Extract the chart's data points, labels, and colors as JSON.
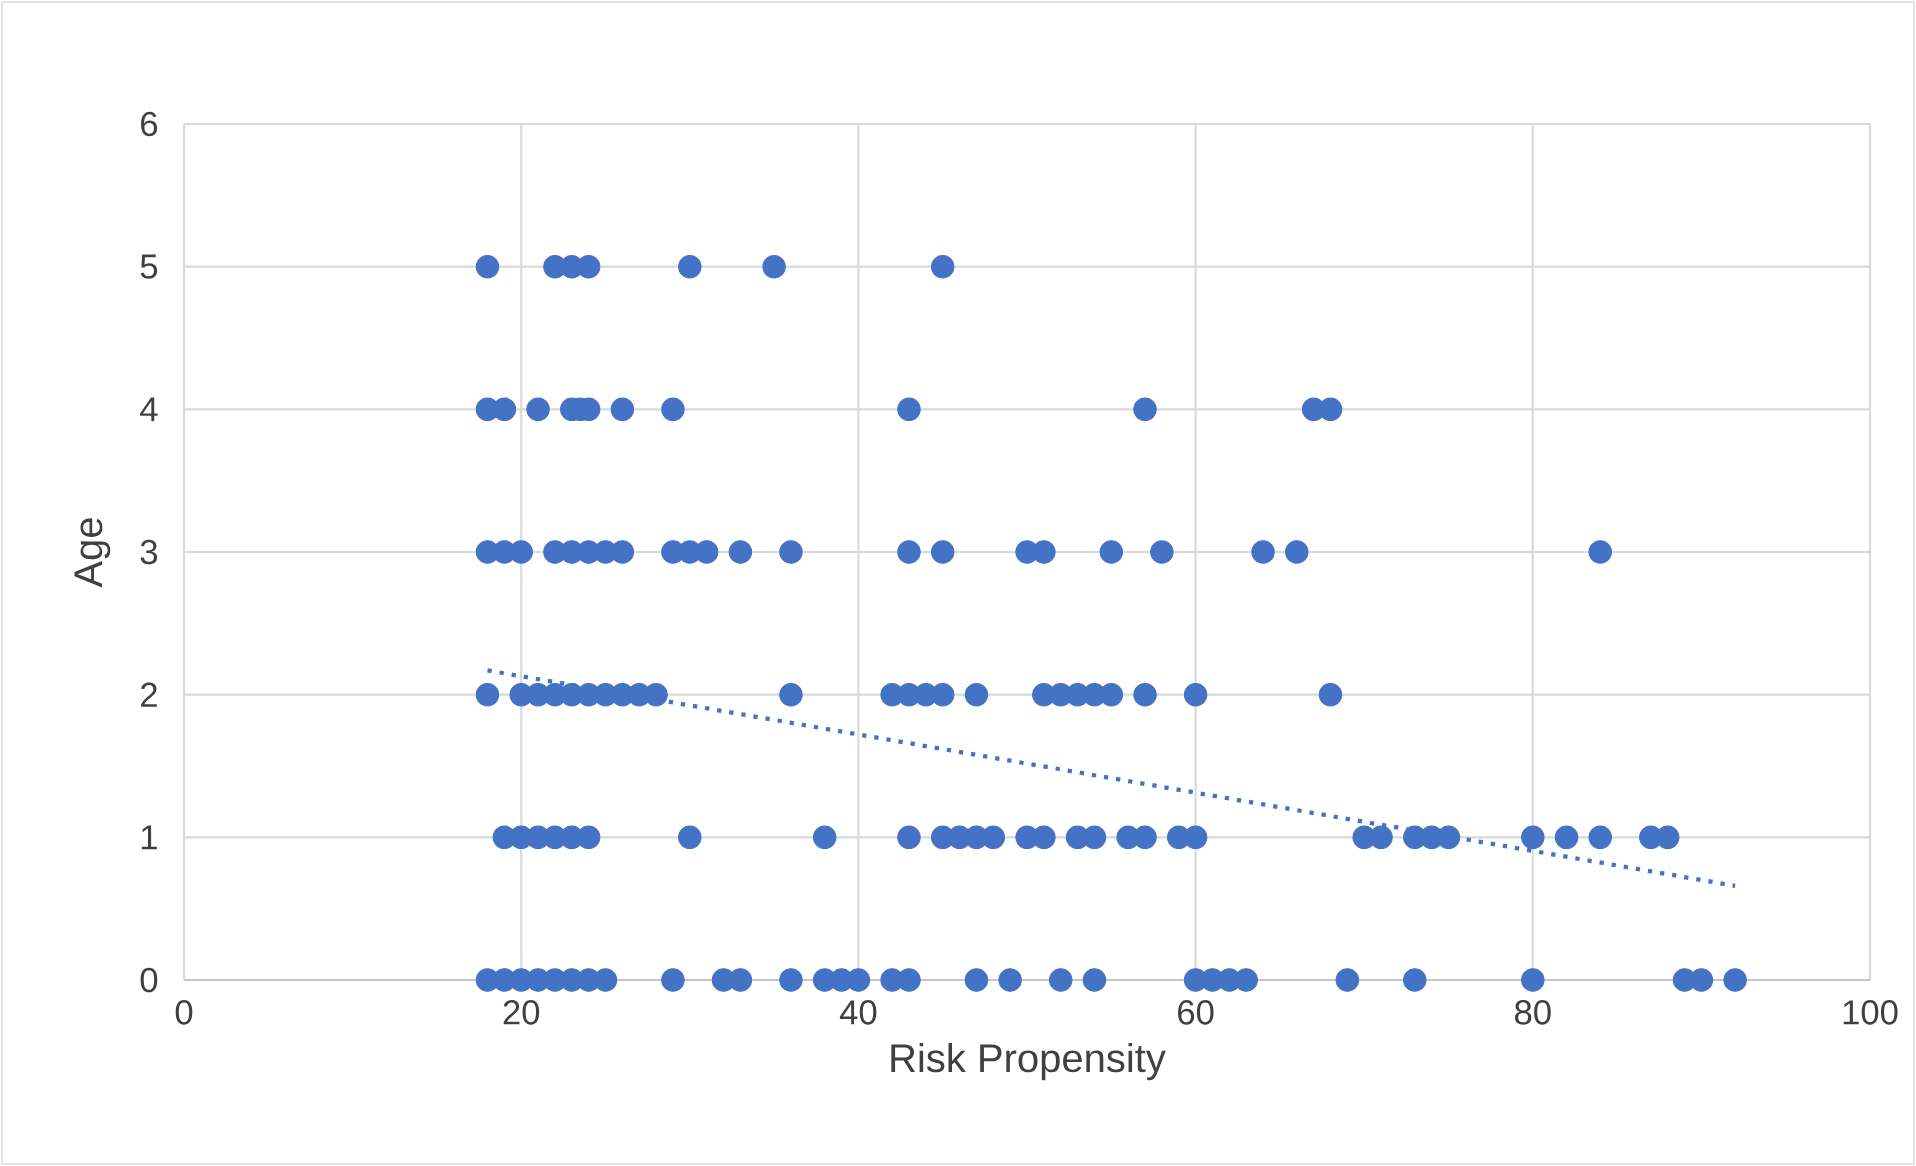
{
  "chart_data": {
    "type": "scatter",
    "xlabel": "Risk Propensity",
    "ylabel": "Age",
    "xlim": [
      0,
      100
    ],
    "xticks": [
      0,
      20,
      40,
      60,
      80,
      100
    ],
    "ylim": [
      0,
      6
    ],
    "yticks": [
      0,
      1,
      2,
      3,
      4,
      5,
      6
    ],
    "grid": true,
    "series": [
      {
        "color": "#4472c4",
        "marker": "circle",
        "x": [
          18,
          22,
          23,
          24,
          30,
          35,
          45,
          18,
          19,
          21,
          23,
          23.5,
          24,
          26,
          29,
          43,
          57,
          67,
          68,
          18,
          19,
          20,
          22,
          23,
          24,
          25,
          26,
          29,
          30,
          31,
          33,
          36,
          43,
          45,
          50,
          51,
          55,
          58,
          64,
          66,
          84,
          18,
          20,
          21,
          22,
          23,
          24,
          25,
          26,
          27,
          28,
          36,
          42,
          43,
          44,
          45,
          47,
          51,
          52,
          53,
          54,
          55,
          57,
          60,
          68,
          19,
          20,
          21,
          22,
          23,
          24,
          30,
          38,
          43,
          45,
          46,
          47,
          48,
          50,
          51,
          53,
          54,
          56,
          57,
          59,
          60,
          70,
          71,
          73,
          74,
          75,
          80,
          82,
          84,
          87,
          88,
          18,
          19,
          20,
          21,
          22,
          23,
          24,
          25,
          29,
          32,
          33,
          36,
          38,
          39,
          40,
          42,
          43,
          47,
          49,
          52,
          54,
          60,
          61,
          62,
          63,
          69,
          73,
          80,
          89,
          90,
          92
        ],
        "values": [
          5,
          5,
          5,
          5,
          5,
          5,
          5,
          4,
          4,
          4,
          4,
          4,
          4,
          4,
          4,
          4,
          4,
          4,
          4,
          3,
          3,
          3,
          3,
          3,
          3,
          3,
          3,
          3,
          3,
          3,
          3,
          3,
          3,
          3,
          3,
          3,
          3,
          3,
          3,
          3,
          3,
          2,
          2,
          2,
          2,
          2,
          2,
          2,
          2,
          2,
          2,
          2,
          2,
          2,
          2,
          2,
          2,
          2,
          2,
          2,
          2,
          2,
          2,
          2,
          2,
          1,
          1,
          1,
          1,
          1,
          1,
          1,
          1,
          1,
          1,
          1,
          1,
          1,
          1,
          1,
          1,
          1,
          1,
          1,
          1,
          1,
          1,
          1,
          1,
          1,
          1,
          1,
          1,
          1,
          1,
          1,
          0,
          0,
          0,
          0,
          0,
          0,
          0,
          0,
          0,
          0,
          0,
          0,
          0,
          0,
          0,
          0,
          0,
          0,
          0,
          0,
          0,
          0,
          0,
          0,
          0,
          0,
          0,
          0,
          0,
          0,
          0
        ]
      },
      {
        "type": "line",
        "color": "#4472c4",
        "marker": "none",
        "line_style": "dotted",
        "x": [
          18,
          92
        ],
        "values": [
          2.17,
          0.66
        ]
      }
    ]
  }
}
